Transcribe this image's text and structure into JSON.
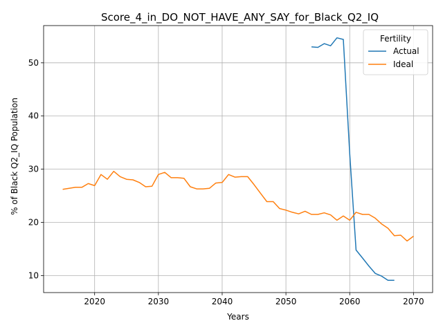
{
  "chart_data": {
    "type": "line",
    "title": "Score_4_in_DO_NOT_HAVE_ANY_SAY_for_Black_Q2_IQ",
    "xlabel": "Years",
    "ylabel": "% of Black Q2_IQ Population",
    "xlim": [
      2012,
      2073
    ],
    "ylim": [
      6.8,
      57
    ],
    "xticks": [
      2020,
      2030,
      2040,
      2050,
      2060,
      2070
    ],
    "yticks": [
      10,
      20,
      30,
      40,
      50
    ],
    "grid": true,
    "legend": {
      "title": "Fertility",
      "placement": "top-right"
    },
    "series": [
      {
        "name": "Actual",
        "color": "#1f77b4",
        "x": [
          2054,
          2055,
          2056,
          2057,
          2058,
          2059,
          2060,
          2061,
          2062,
          2063,
          2064,
          2065,
          2066,
          2067
        ],
        "y": [
          53.0,
          52.9,
          53.6,
          53.2,
          54.7,
          54.4,
          33.0,
          14.8,
          13.3,
          11.8,
          10.4,
          9.9,
          9.1,
          9.1
        ]
      },
      {
        "name": "Ideal",
        "color": "#ff7f0e",
        "x": [
          2015,
          2016,
          2017,
          2018,
          2019,
          2020,
          2021,
          2022,
          2023,
          2024,
          2025,
          2026,
          2027,
          2028,
          2029,
          2030,
          2031,
          2032,
          2033,
          2034,
          2035,
          2036,
          2037,
          2038,
          2039,
          2040,
          2041,
          2042,
          2043,
          2044,
          2045,
          2046,
          2047,
          2048,
          2049,
          2050,
          2051,
          2052,
          2053,
          2054,
          2055,
          2056,
          2057,
          2058,
          2059,
          2060,
          2061,
          2062,
          2063,
          2064,
          2065,
          2066,
          2067,
          2068,
          2069,
          2070
        ],
        "y": [
          26.2,
          26.4,
          26.6,
          26.6,
          27.3,
          26.9,
          29.0,
          28.1,
          29.6,
          28.6,
          28.1,
          28.0,
          27.5,
          26.7,
          26.8,
          29.0,
          29.4,
          28.4,
          28.4,
          28.3,
          26.7,
          26.3,
          26.3,
          26.4,
          27.4,
          27.5,
          29.0,
          28.5,
          28.6,
          28.6,
          27.1,
          25.5,
          23.9,
          23.9,
          22.6,
          22.3,
          21.9,
          21.6,
          22.1,
          21.5,
          21.5,
          21.8,
          21.4,
          20.4,
          21.2,
          20.4,
          21.9,
          21.5,
          21.5,
          20.8,
          19.7,
          18.9,
          17.5,
          17.6,
          16.5,
          17.4
        ]
      }
    ]
  }
}
